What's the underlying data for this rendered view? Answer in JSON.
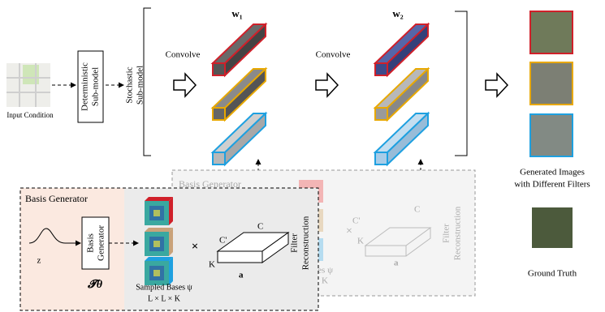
{
  "pipeline": {
    "input_label": "Input Condition",
    "deterministic": [
      "Deterministic",
      "Sub-model"
    ],
    "stochastic": [
      "Stochastic",
      "Sub-model"
    ],
    "convolve_1": "Convolve",
    "convolve_2": "Convolve",
    "w1": "w₁",
    "w2": "w₂"
  },
  "front_generator": {
    "title": "Basis Generator",
    "box": [
      "Basis",
      "Generator"
    ],
    "z": "z",
    "t_theta": "𝓣θ",
    "bases_label": "Sampled Bases ψ",
    "bases_dims": "L × L × K",
    "times": "×",
    "c": "C",
    "c_prime": "C'",
    "k": "K",
    "a": "a",
    "reconstruction": [
      "Filter",
      "Reconstruction"
    ]
  },
  "back_generator": {
    "title": "Basis Generator",
    "bases_label": "ases ψ",
    "bases_k": "K",
    "times": "×",
    "c": "C",
    "c_prime": "C'",
    "k": "K",
    "a": "a",
    "reconstruction": [
      "Filter",
      "Reconstruction"
    ]
  },
  "outputs": {
    "generated": [
      "Generated Images",
      "with Different Filters"
    ],
    "ground_truth": "Ground Truth"
  }
}
